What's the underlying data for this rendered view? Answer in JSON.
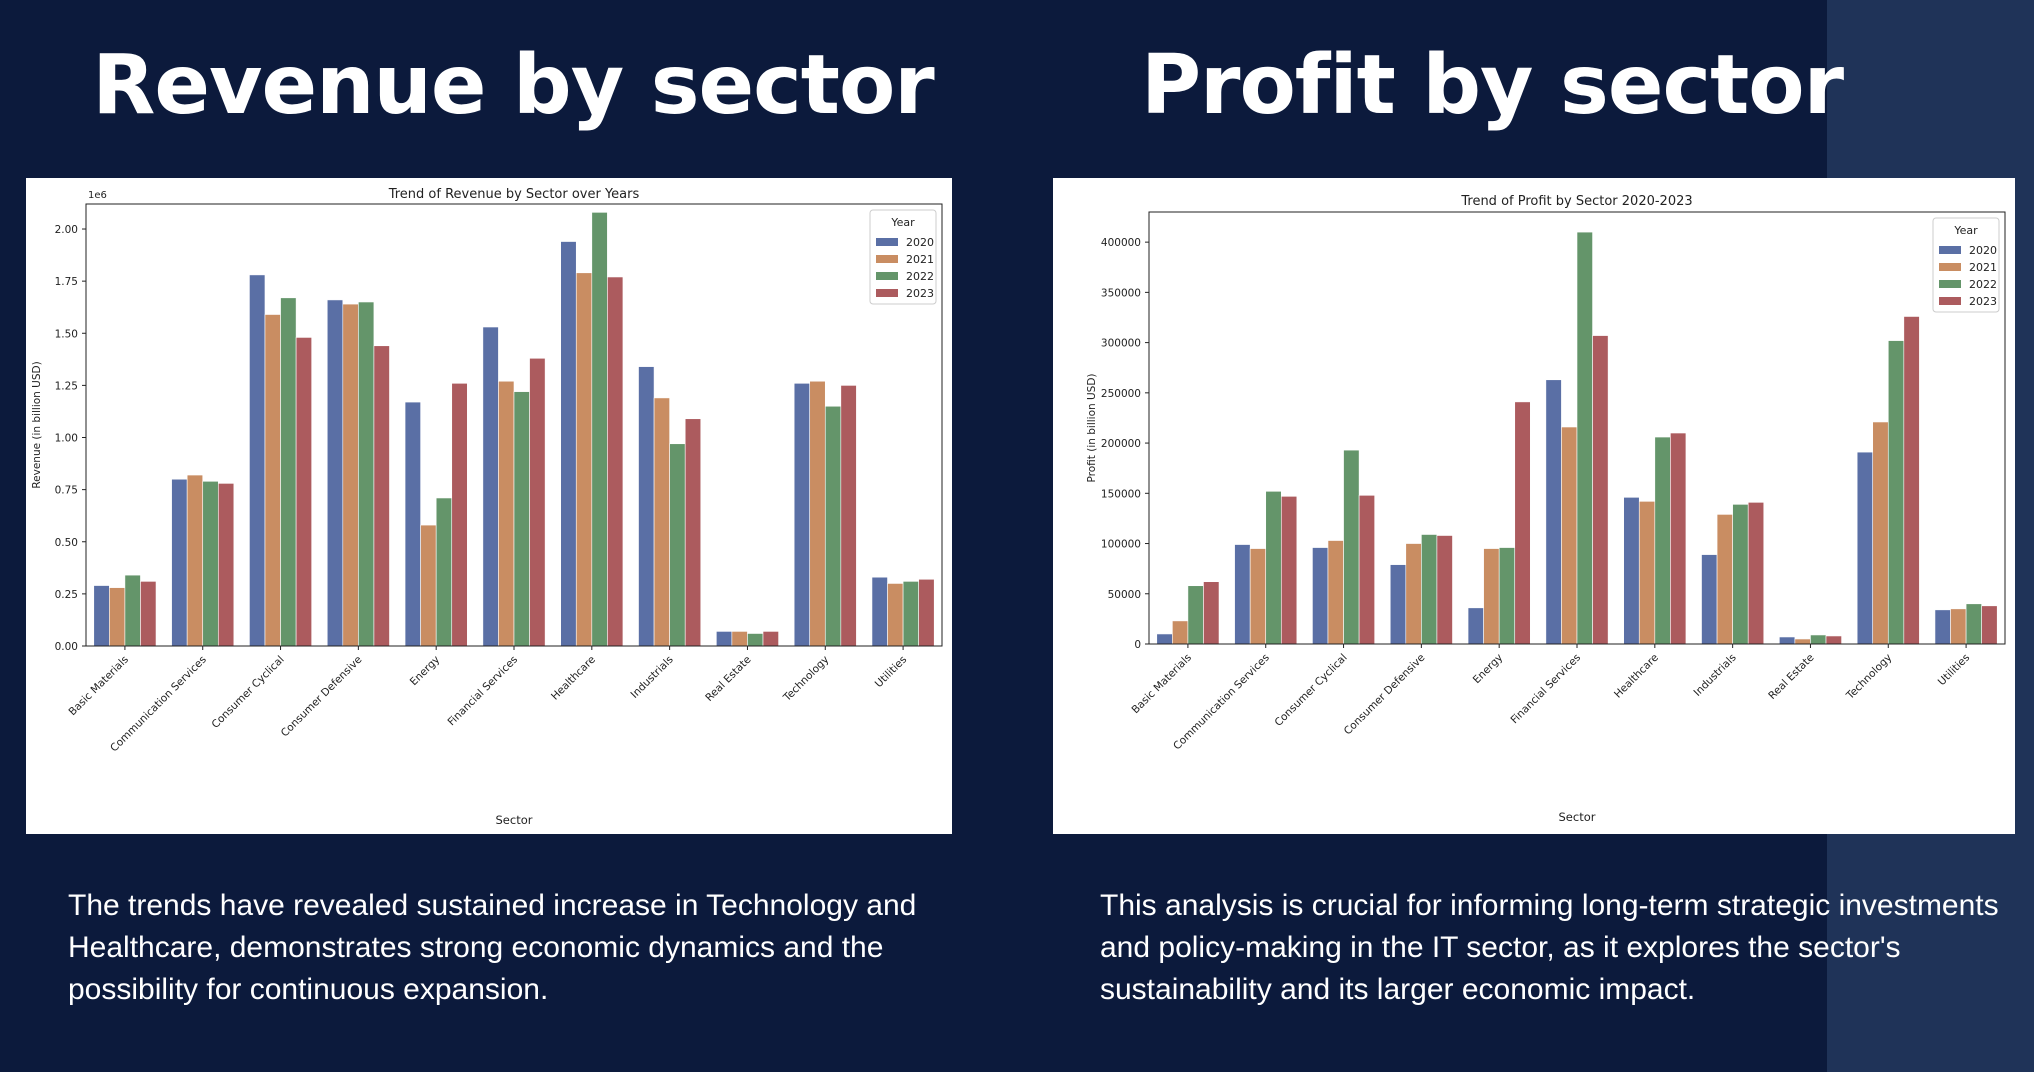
{
  "slide": {
    "left_heading": "Revenue by sector",
    "right_heading": "Profit by sector",
    "left_caption": "The trends have revealed sustained increase in Technology and Healthcare, demonstrates strong economic dynamics and the possibility for continuous expansion.",
    "right_caption": "This analysis is crucial for informing long-term strategic investments and policy-making in the IT sector, as it explores the sector's sustainability and its larger economic impact."
  },
  "colors": {
    "background": "#0c1a3c",
    "accent_panel": "#1f3358",
    "series": [
      "#5a6fa5",
      "#c98d62",
      "#64956a",
      "#ac5b5e"
    ]
  },
  "chart_data": [
    {
      "type": "bar",
      "title": "Trend of Revenue by Sector over Years",
      "xlabel": "Sector",
      "ylabel": "Revenue (in billion USD)",
      "y_offset_label": "1e6",
      "ylim": [
        0,
        2.12
      ],
      "yticks": [
        0.0,
        0.25,
        0.5,
        0.75,
        1.0,
        1.25,
        1.5,
        1.75,
        2.0
      ],
      "ytick_labels": [
        "0.00",
        "0.25",
        "0.50",
        "0.75",
        "1.00",
        "1.25",
        "1.50",
        "1.75",
        "2.00"
      ],
      "legend_title": "Year",
      "legend_position": "top-right",
      "grid": false,
      "categories": [
        "Basic Materials",
        "Communication Services",
        "Consumer Cyclical",
        "Consumer Defensive",
        "Energy",
        "Financial Services",
        "Healthcare",
        "Industrials",
        "Real Estate",
        "Technology",
        "Utilities"
      ],
      "series": [
        {
          "name": "2020",
          "values": [
            0.29,
            0.8,
            1.78,
            1.66,
            1.17,
            1.53,
            1.94,
            1.34,
            0.07,
            1.26,
            0.33
          ]
        },
        {
          "name": "2021",
          "values": [
            0.28,
            0.82,
            1.59,
            1.64,
            0.58,
            1.27,
            1.79,
            1.19,
            0.07,
            1.27,
            0.3
          ]
        },
        {
          "name": "2022",
          "values": [
            0.34,
            0.79,
            1.67,
            1.65,
            0.71,
            1.22,
            2.08,
            0.97,
            0.06,
            1.15,
            0.31
          ]
        },
        {
          "name": "2023",
          "values": [
            0.31,
            0.78,
            1.48,
            1.44,
            1.26,
            1.38,
            1.77,
            1.09,
            0.07,
            1.25,
            0.32
          ]
        }
      ]
    },
    {
      "type": "bar",
      "title": "Trend of Profit by Sector 2020-2023",
      "xlabel": "Sector",
      "ylabel": "Profit (in billion USD)",
      "ylim": [
        0,
        430000
      ],
      "yticks": [
        0,
        50000,
        100000,
        150000,
        200000,
        250000,
        300000,
        350000,
        400000
      ],
      "ytick_labels": [
        "0",
        "50000",
        "100000",
        "150000",
        "200000",
        "250000",
        "300000",
        "350000",
        "400000"
      ],
      "legend_title": "Year",
      "legend_position": "top-right",
      "grid": false,
      "categories": [
        "Basic Materials",
        "Communication Services",
        "Consumer Cyclical",
        "Consumer Defensive",
        "Energy",
        "Financial Services",
        "Healthcare",
        "Industrials",
        "Real Estate",
        "Technology",
        "Utilities"
      ],
      "series": [
        {
          "name": "2020",
          "values": [
            10000,
            99000,
            96000,
            79000,
            36000,
            263000,
            146000,
            89000,
            7000,
            191000,
            34000
          ]
        },
        {
          "name": "2021",
          "values": [
            23000,
            95000,
            103000,
            100000,
            95000,
            216000,
            142000,
            129000,
            5000,
            221000,
            35000
          ]
        },
        {
          "name": "2022",
          "values": [
            58000,
            152000,
            193000,
            109000,
            96000,
            410000,
            206000,
            139000,
            9000,
            302000,
            40000
          ]
        },
        {
          "name": "2023",
          "values": [
            62000,
            147000,
            148000,
            108000,
            241000,
            307000,
            210000,
            141000,
            8000,
            326000,
            38000
          ]
        }
      ]
    }
  ]
}
